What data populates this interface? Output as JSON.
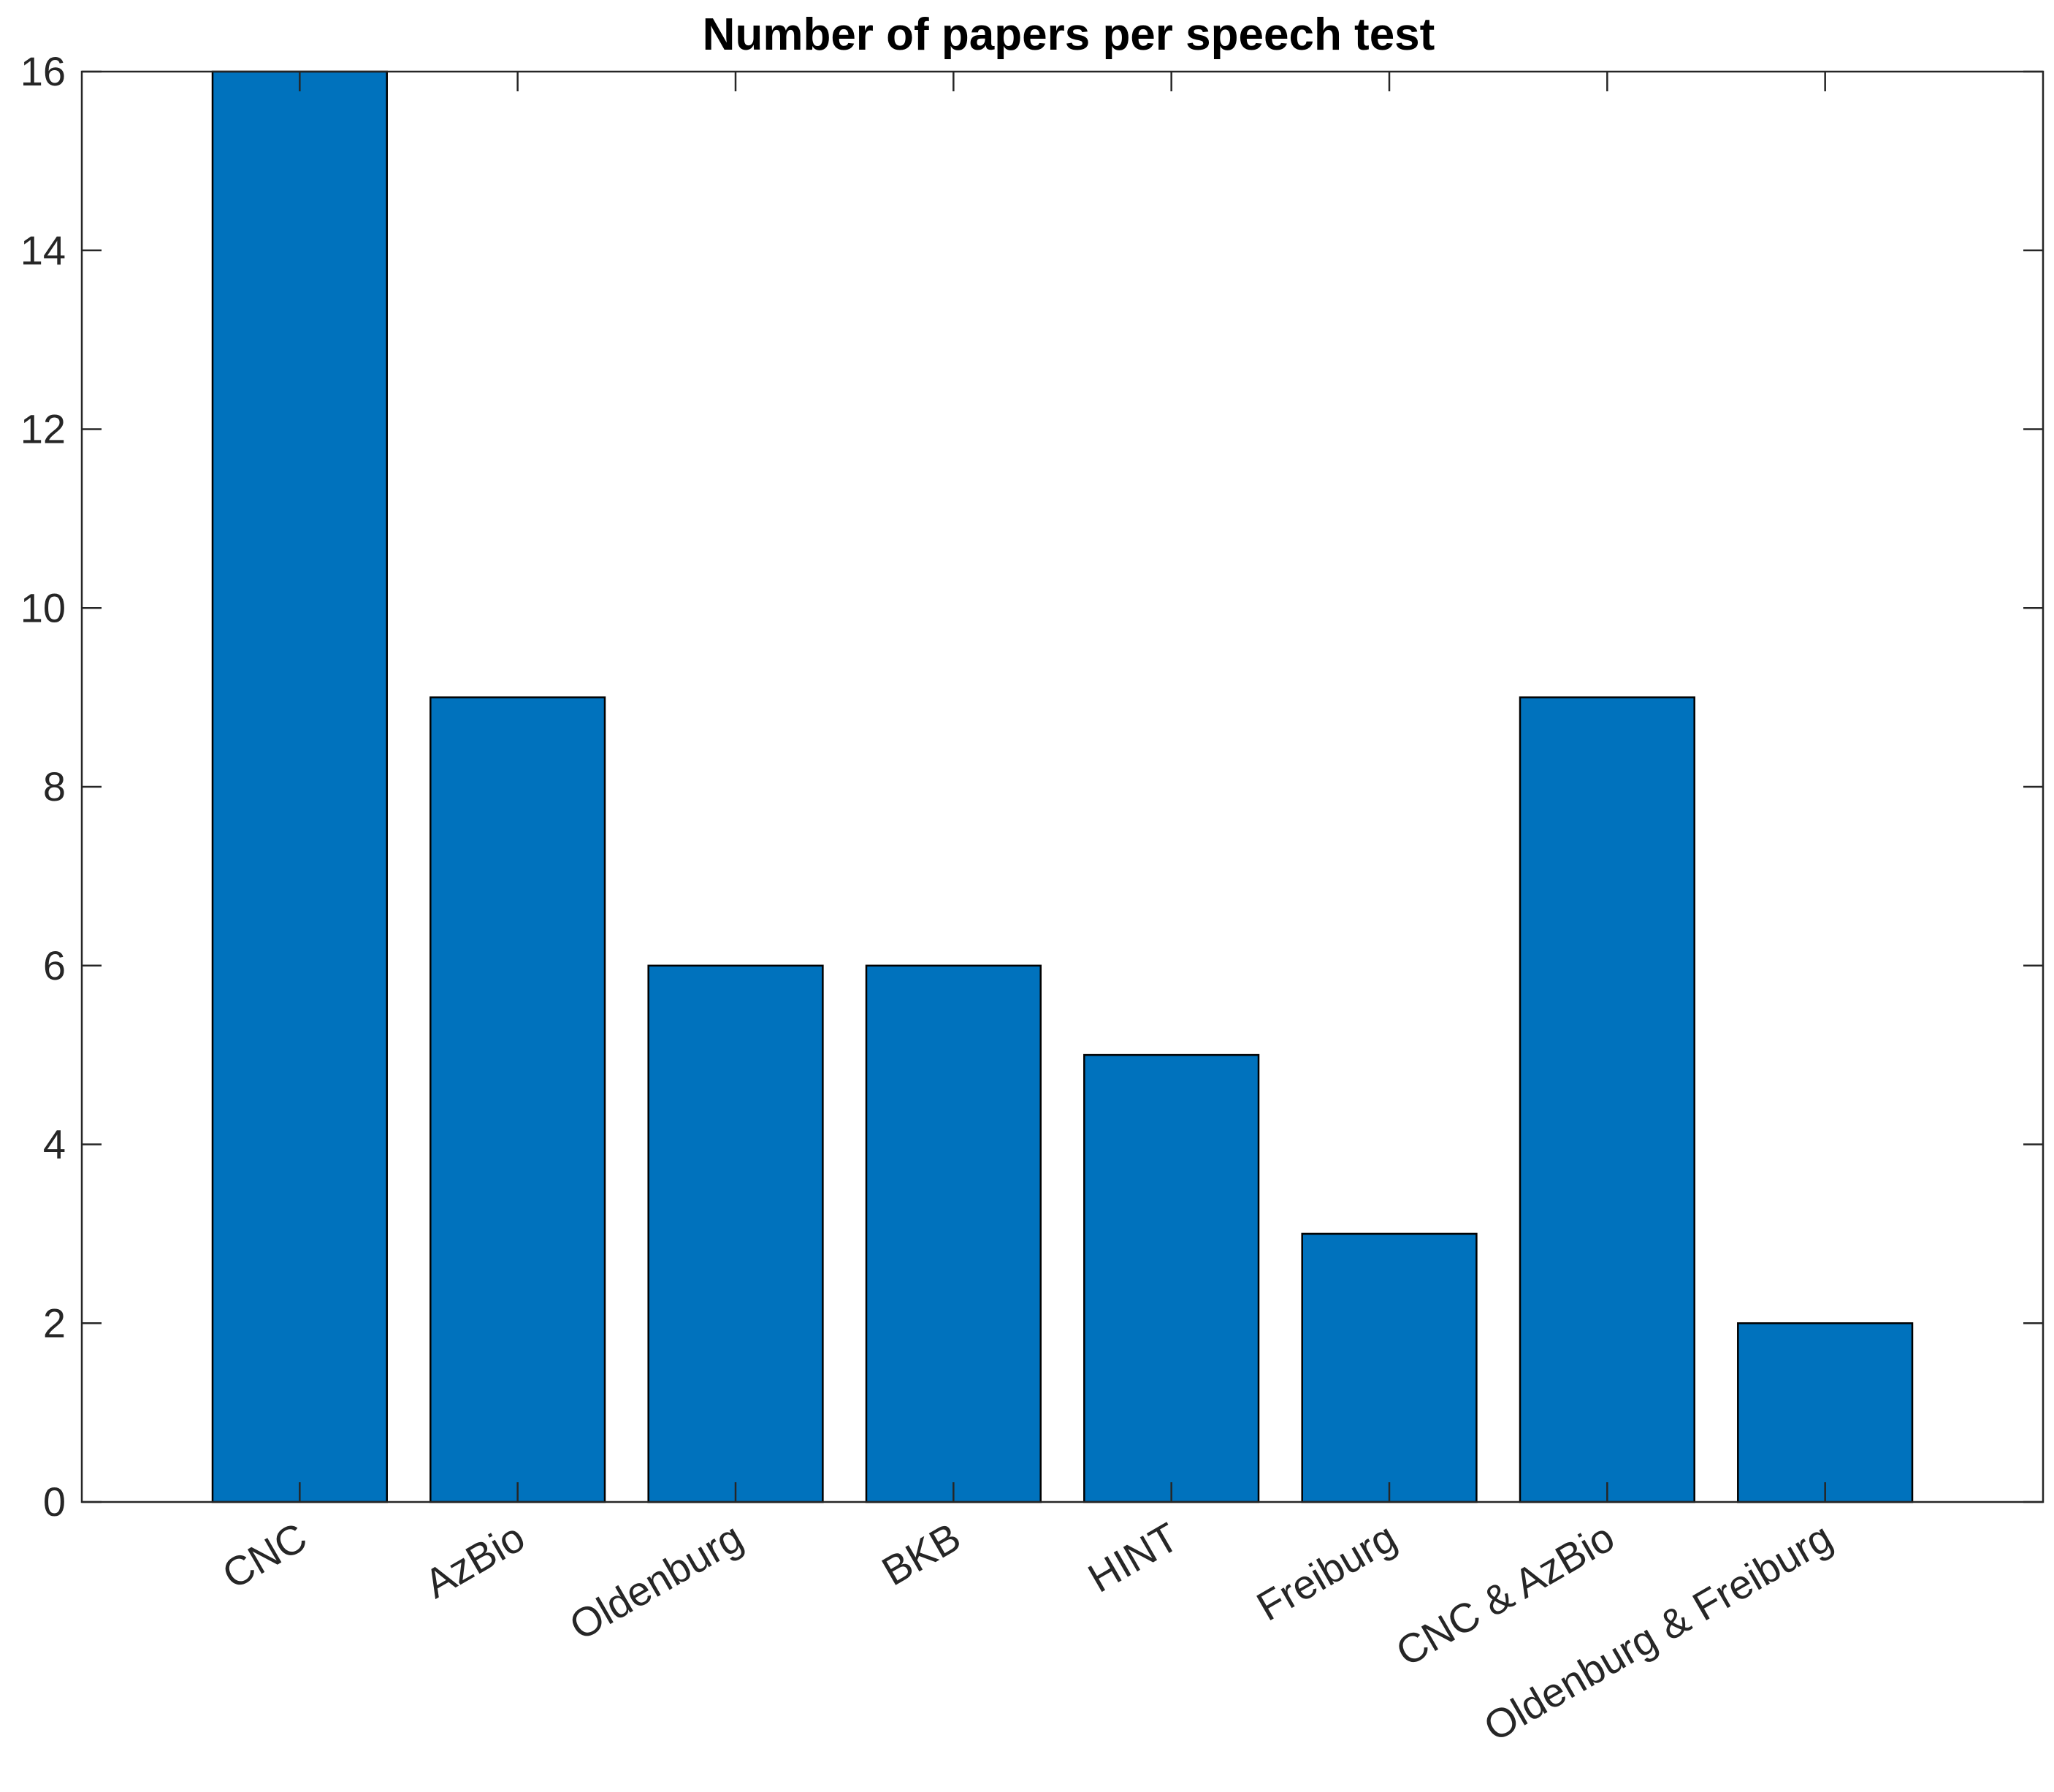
{
  "chart_data": {
    "type": "bar",
    "title": "Number of papers per speech test",
    "xlabel": "",
    "ylabel": "",
    "categories": [
      "CNC",
      "AzBio",
      "Oldenburg",
      "BKB",
      "HINT",
      "Freiburg",
      "CNC & AzBio",
      "Oldenburg & Freiburg"
    ],
    "values": [
      16,
      9,
      6,
      6,
      5,
      3,
      9,
      2
    ],
    "ylim": [
      0,
      16
    ],
    "yticks": [
      "0",
      "2",
      "4",
      "6",
      "8",
      "10",
      "12",
      "14",
      "16"
    ],
    "grid": false,
    "legend": "none",
    "bar_color": "#0072BD",
    "bar_edge_color": "#000000",
    "axis_color": "#262626"
  }
}
